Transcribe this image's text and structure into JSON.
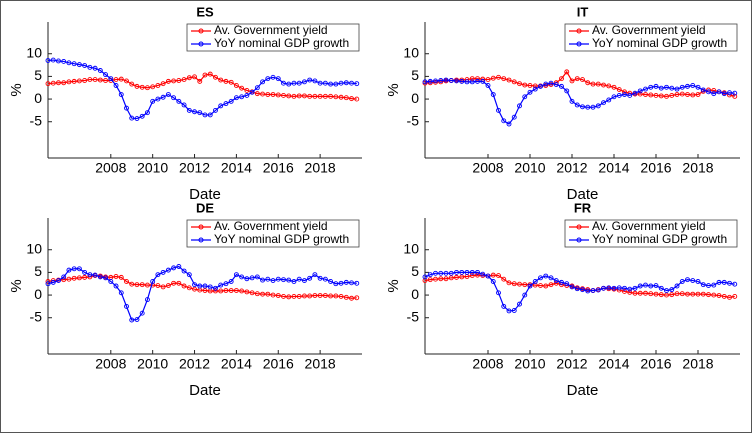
{
  "chart_data": [
    {
      "type": "line",
      "title": "ES",
      "x_label": "Date",
      "y_label": "%",
      "legend": "upper right",
      "xlim": [
        2005,
        2020
      ],
      "ylim": [
        -13,
        17
      ],
      "xticks": [
        2008,
        2010,
        2012,
        2014,
        2016,
        2018
      ],
      "yticks": [
        -5,
        0,
        5,
        10
      ],
      "x": [
        2005,
        2005.25,
        2005.5,
        2005.75,
        2006,
        2006.25,
        2006.5,
        2006.75,
        2007,
        2007.25,
        2007.5,
        2007.75,
        2008,
        2008.25,
        2008.5,
        2008.75,
        2009,
        2009.25,
        2009.5,
        2009.75,
        2010,
        2010.25,
        2010.5,
        2010.75,
        2011,
        2011.25,
        2011.5,
        2011.75,
        2012,
        2012.25,
        2012.5,
        2012.75,
        2013,
        2013.25,
        2013.5,
        2013.75,
        2014,
        2014.25,
        2014.5,
        2014.75,
        2015,
        2015.25,
        2015.5,
        2015.75,
        2016,
        2016.25,
        2016.5,
        2016.75,
        2017,
        2017.25,
        2017.5,
        2017.75,
        2018,
        2018.25,
        2018.5,
        2018.75,
        2019,
        2019.25,
        2019.5,
        2019.75
      ],
      "series": [
        {
          "name": "Av. Government yield",
          "color": "#ff0000",
          "values": [
            3.4,
            3.5,
            3.6,
            3.6,
            3.8,
            3.9,
            4.0,
            4.1,
            4.3,
            4.3,
            4.2,
            4.1,
            4.1,
            4.3,
            4.4,
            4.0,
            3.3,
            2.8,
            2.6,
            2.5,
            2.7,
            3.0,
            3.4,
            3.9,
            4.0,
            4.1,
            4.3,
            4.7,
            4.9,
            3.9,
            5.3,
            5.5,
            4.8,
            4.2,
            3.9,
            3.7,
            3.0,
            2.4,
            1.9,
            1.6,
            1.2,
            1.1,
            1.0,
            1.0,
            0.9,
            0.8,
            0.7,
            0.6,
            0.7,
            0.7,
            0.6,
            0.6,
            0.6,
            0.6,
            0.6,
            0.5,
            0.4,
            0.3,
            0.1,
            0.0
          ]
        },
        {
          "name": "YoY nominal GDP growth",
          "color": "#0000ff",
          "values": [
            8.5,
            8.6,
            8.4,
            8.3,
            8.0,
            7.8,
            7.6,
            7.4,
            7.0,
            6.8,
            6.3,
            5.4,
            4.5,
            3.0,
            1.0,
            -2.0,
            -4.2,
            -4.3,
            -3.8,
            -3.0,
            -0.5,
            0.0,
            0.4,
            1.0,
            0.3,
            -0.5,
            -1.3,
            -2.5,
            -2.8,
            -3.0,
            -3.5,
            -3.5,
            -2.5,
            -1.5,
            -1.0,
            -0.5,
            0.3,
            0.5,
            0.8,
            1.5,
            2.5,
            3.8,
            4.5,
            4.8,
            4.5,
            3.5,
            3.3,
            3.5,
            3.5,
            3.8,
            4.2,
            4.0,
            3.5,
            3.5,
            3.3,
            3.3,
            3.5,
            3.6,
            3.5,
            3.4
          ]
        }
      ]
    },
    {
      "type": "line",
      "title": "IT",
      "x_label": "Date",
      "y_label": "%",
      "legend": "upper right",
      "xlim": [
        2005,
        2020
      ],
      "ylim": [
        -13,
        17
      ],
      "xticks": [
        2008,
        2010,
        2012,
        2014,
        2016,
        2018
      ],
      "yticks": [
        -5,
        0,
        5,
        10
      ],
      "x": [
        2005,
        2005.25,
        2005.5,
        2005.75,
        2006,
        2006.25,
        2006.5,
        2006.75,
        2007,
        2007.25,
        2007.5,
        2007.75,
        2008,
        2008.25,
        2008.5,
        2008.75,
        2009,
        2009.25,
        2009.5,
        2009.75,
        2010,
        2010.25,
        2010.5,
        2010.75,
        2011,
        2011.25,
        2011.5,
        2011.75,
        2012,
        2012.25,
        2012.5,
        2012.75,
        2013,
        2013.25,
        2013.5,
        2013.75,
        2014,
        2014.25,
        2014.5,
        2014.75,
        2015,
        2015.25,
        2015.5,
        2015.75,
        2016,
        2016.25,
        2016.5,
        2016.75,
        2017,
        2017.25,
        2017.5,
        2017.75,
        2018,
        2018.25,
        2018.5,
        2018.75,
        2019,
        2019.25,
        2019.5,
        2019.75
      ],
      "series": [
        {
          "name": "Av. Government yield",
          "color": "#ff0000",
          "values": [
            3.5,
            3.6,
            3.7,
            3.8,
            4.0,
            4.1,
            4.2,
            4.2,
            4.3,
            4.5,
            4.5,
            4.4,
            4.3,
            4.6,
            4.8,
            4.5,
            4.2,
            3.8,
            3.4,
            3.1,
            3.0,
            2.9,
            2.9,
            3.0,
            3.2,
            3.6,
            4.5,
            6.0,
            4.0,
            4.5,
            4.3,
            3.6,
            3.3,
            3.3,
            3.1,
            2.9,
            2.6,
            2.1,
            1.6,
            1.3,
            1.1,
            1.1,
            1.0,
            0.9,
            0.8,
            0.7,
            0.6,
            0.8,
            1.0,
            1.1,
            1.0,
            0.9,
            1.0,
            1.7,
            2.0,
            1.9,
            1.6,
            1.4,
            0.9,
            0.6
          ]
        },
        {
          "name": "YoY nominal GDP growth",
          "color": "#0000ff",
          "values": [
            3.8,
            3.9,
            4.0,
            4.1,
            4.2,
            4.1,
            4.0,
            3.9,
            3.8,
            3.8,
            3.9,
            3.9,
            3.0,
            1.0,
            -2.5,
            -4.8,
            -5.5,
            -4.0,
            -1.5,
            0.5,
            1.5,
            2.2,
            2.8,
            3.3,
            3.5,
            3.2,
            2.8,
            1.8,
            -0.5,
            -1.3,
            -1.7,
            -1.8,
            -1.8,
            -1.5,
            -0.8,
            -0.2,
            0.5,
            0.8,
            1.0,
            0.8,
            1.3,
            1.8,
            2.2,
            2.6,
            2.8,
            2.4,
            2.6,
            2.4,
            2.2,
            2.6,
            2.8,
            3.0,
            2.6,
            2.0,
            1.6,
            1.2,
            1.6,
            1.2,
            1.4,
            1.3
          ]
        }
      ]
    },
    {
      "type": "line",
      "title": "DE",
      "x_label": "Date",
      "y_label": "%",
      "legend": "upper right",
      "xlim": [
        2005,
        2020
      ],
      "ylim": [
        -13,
        17
      ],
      "xticks": [
        2008,
        2010,
        2012,
        2014,
        2016,
        2018
      ],
      "yticks": [
        -5,
        0,
        5,
        10
      ],
      "x": [
        2005,
        2005.25,
        2005.5,
        2005.75,
        2006,
        2006.25,
        2006.5,
        2006.75,
        2007,
        2007.25,
        2007.5,
        2007.75,
        2008,
        2008.25,
        2008.5,
        2008.75,
        2009,
        2009.25,
        2009.5,
        2009.75,
        2010,
        2010.25,
        2010.5,
        2010.75,
        2011,
        2011.25,
        2011.5,
        2011.75,
        2012,
        2012.25,
        2012.5,
        2012.75,
        2013,
        2013.25,
        2013.5,
        2013.75,
        2014,
        2014.25,
        2014.5,
        2014.75,
        2015,
        2015.25,
        2015.5,
        2015.75,
        2016,
        2016.25,
        2016.5,
        2016.75,
        2017,
        2017.25,
        2017.5,
        2017.75,
        2018,
        2018.25,
        2018.5,
        2018.75,
        2019,
        2019.25,
        2019.5,
        2019.75
      ],
      "series": [
        {
          "name": "Av. Government yield",
          "color": "#ff0000",
          "values": [
            3.0,
            3.2,
            3.3,
            3.4,
            3.5,
            3.7,
            3.8,
            3.9,
            4.0,
            4.3,
            4.2,
            4.0,
            3.9,
            4.1,
            3.9,
            3.0,
            2.4,
            2.3,
            2.3,
            2.2,
            2.2,
            2.1,
            1.8,
            2.1,
            2.6,
            2.6,
            2.0,
            1.6,
            1.3,
            1.1,
            1.0,
            0.9,
            0.9,
            0.9,
            1.0,
            1.0,
            1.0,
            0.9,
            0.7,
            0.5,
            0.3,
            0.2,
            0.2,
            0.0,
            -0.1,
            -0.3,
            -0.4,
            -0.3,
            -0.3,
            -0.2,
            -0.2,
            -0.1,
            -0.1,
            -0.1,
            -0.2,
            -0.2,
            -0.3,
            -0.5,
            -0.7,
            -0.6
          ]
        },
        {
          "name": "YoY nominal GDP growth",
          "color": "#0000ff",
          "values": [
            2.5,
            2.8,
            3.2,
            4.0,
            5.5,
            5.8,
            5.8,
            5.0,
            4.5,
            4.4,
            4.0,
            3.8,
            3.0,
            2.0,
            0.5,
            -2.5,
            -5.5,
            -5.4,
            -4.0,
            -1.0,
            3.0,
            4.5,
            5.0,
            5.5,
            6.0,
            6.3,
            5.3,
            4.5,
            2.3,
            2.0,
            2.0,
            1.8,
            1.5,
            2.2,
            2.5,
            3.0,
            4.5,
            4.0,
            3.6,
            3.8,
            4.0,
            3.3,
            3.5,
            3.2,
            3.5,
            3.4,
            3.3,
            3.0,
            3.5,
            3.2,
            3.7,
            4.5,
            3.7,
            3.5,
            3.0,
            2.5,
            2.6,
            2.8,
            2.7,
            2.6
          ]
        }
      ]
    },
    {
      "type": "line",
      "title": "FR",
      "x_label": "Date",
      "y_label": "%",
      "legend": "upper right",
      "xlim": [
        2005,
        2020
      ],
      "ylim": [
        -13,
        17
      ],
      "xticks": [
        2008,
        2010,
        2012,
        2014,
        2016,
        2018
      ],
      "yticks": [
        -5,
        0,
        5,
        10
      ],
      "x": [
        2005,
        2005.25,
        2005.5,
        2005.75,
        2006,
        2006.25,
        2006.5,
        2006.75,
        2007,
        2007.25,
        2007.5,
        2007.75,
        2008,
        2008.25,
        2008.5,
        2008.75,
        2009,
        2009.25,
        2009.5,
        2009.75,
        2010,
        2010.25,
        2010.5,
        2010.75,
        2011,
        2011.25,
        2011.5,
        2011.75,
        2012,
        2012.25,
        2012.5,
        2012.75,
        2013,
        2013.25,
        2013.5,
        2013.75,
        2014,
        2014.25,
        2014.5,
        2014.75,
        2015,
        2015.25,
        2015.5,
        2015.75,
        2016,
        2016.25,
        2016.5,
        2016.75,
        2017,
        2017.25,
        2017.5,
        2017.75,
        2018,
        2018.25,
        2018.5,
        2018.75,
        2019,
        2019.25,
        2019.5,
        2019.75
      ],
      "series": [
        {
          "name": "Av. Government yield",
          "color": "#ff0000",
          "values": [
            3.2,
            3.4,
            3.5,
            3.6,
            3.6,
            3.8,
            3.9,
            4.0,
            4.1,
            4.3,
            4.4,
            4.3,
            4.2,
            4.4,
            4.3,
            3.5,
            2.7,
            2.5,
            2.4,
            2.3,
            2.3,
            2.2,
            2.1,
            2.0,
            2.3,
            2.6,
            2.3,
            2.1,
            2.0,
            1.6,
            1.4,
            1.2,
            1.0,
            1.2,
            1.5,
            1.4,
            1.3,
            1.1,
            0.8,
            0.6,
            0.4,
            0.4,
            0.4,
            0.3,
            0.2,
            0.1,
            0.0,
            0.1,
            0.3,
            0.3,
            0.2,
            0.2,
            0.2,
            0.2,
            0.1,
            0.0,
            -0.1,
            -0.3,
            -0.5,
            -0.3
          ]
        },
        {
          "name": "YoY nominal GDP growth",
          "color": "#0000ff",
          "values": [
            4.0,
            4.5,
            4.8,
            4.8,
            4.8,
            4.8,
            5.0,
            5.0,
            5.0,
            5.0,
            5.0,
            4.6,
            4.2,
            3.0,
            0.5,
            -2.5,
            -3.5,
            -3.4,
            -2.0,
            0.0,
            2.0,
            3.0,
            3.8,
            4.2,
            3.8,
            3.2,
            2.8,
            2.5,
            1.8,
            1.4,
            1.2,
            0.9,
            1.0,
            1.1,
            1.5,
            1.6,
            1.5,
            1.6,
            1.5,
            1.3,
            1.5,
            2.0,
            2.2,
            2.0,
            2.1,
            1.5,
            1.0,
            1.2,
            2.0,
            3.0,
            3.4,
            3.2,
            3.0,
            2.3,
            2.1,
            2.2,
            2.8,
            2.8,
            2.6,
            2.4
          ]
        }
      ]
    }
  ]
}
